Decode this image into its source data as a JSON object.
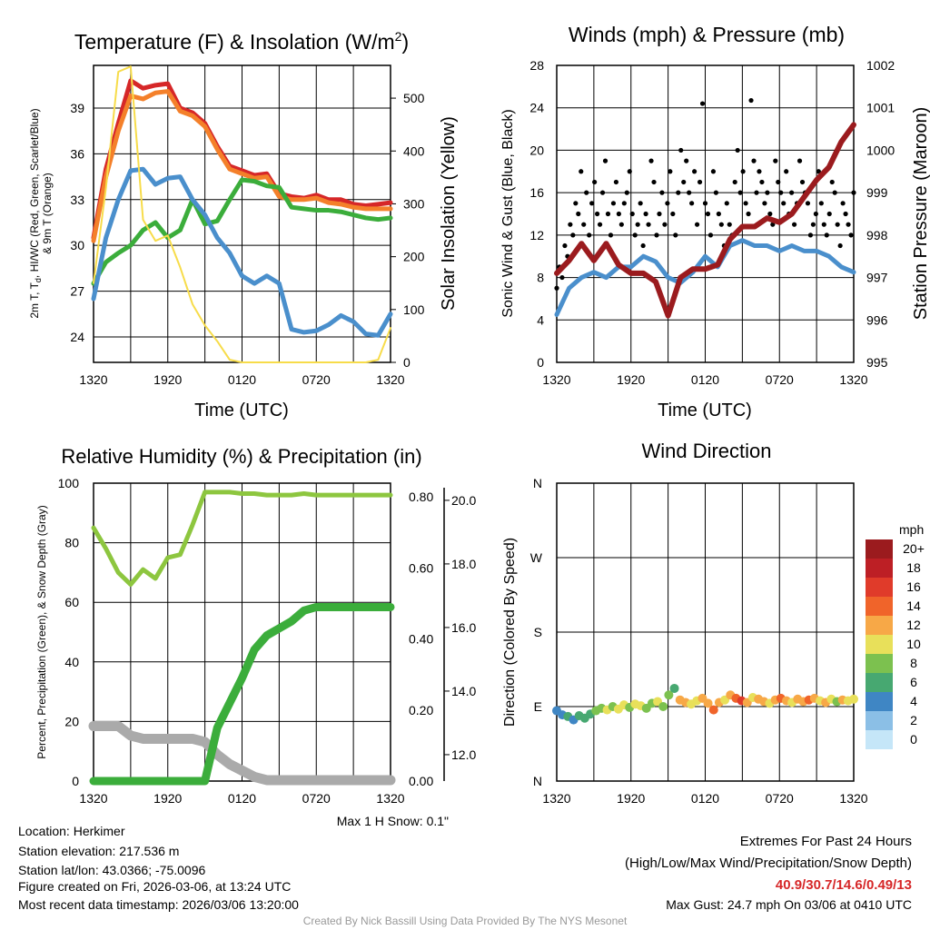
{
  "chart_data": [
    {
      "type": "line",
      "title": "Temperature (F) & Insolation (W/m",
      "title_sup": "2",
      "title_end": ")",
      "xlabel": "Time (UTC)",
      "ylabel_line1": "2m T, T",
      "ylabel_sub": "d",
      "ylabel_line1_end": ", HI/WC (Red, Green, Scarlet/Blue)",
      "ylabel_line2": "& 9m T (Orange)",
      "y2label": "Solar Insolation (Yellow)",
      "xticks": [
        "1320",
        "1920",
        "0120",
        "0720",
        "1320"
      ],
      "yticks": [
        "24",
        "27",
        "30",
        "33",
        "36",
        "39"
      ],
      "y2ticks": [
        "0",
        "100",
        "200",
        "300",
        "400",
        "500"
      ],
      "ylim": [
        22.33,
        41.8
      ],
      "y2lim": [
        0,
        562
      ],
      "hours": [
        0,
        1,
        2,
        3,
        4,
        5,
        6,
        7,
        8,
        9,
        10,
        11,
        12,
        13,
        14,
        15,
        16,
        17,
        18,
        19,
        20,
        21,
        22,
        23,
        24
      ],
      "series": [
        {
          "name": "2m T",
          "color": "#d62728",
          "axis": "left",
          "values": [
            30.5,
            35,
            38,
            40.8,
            40.3,
            40.5,
            40.6,
            39,
            38.7,
            38,
            36.5,
            35.2,
            34.9,
            34.6,
            34.7,
            33.4,
            33.2,
            33.1,
            33.3,
            33.0,
            33.0,
            32.7,
            32.6,
            32.7,
            32.8
          ]
        },
        {
          "name": "9m T",
          "color": "#f4802a",
          "axis": "left",
          "values": [
            30.3,
            34.5,
            37.5,
            39.8,
            39.6,
            40,
            40.1,
            38.8,
            38.5,
            37.8,
            36.3,
            35,
            34.7,
            34.4,
            34.5,
            33.2,
            33,
            33,
            33.1,
            32.8,
            32.7,
            32.5,
            32.4,
            32.4,
            32.4
          ]
        },
        {
          "name": "HI/WC",
          "color": "#3bad3b",
          "axis": "left",
          "values": [
            27.5,
            28.9,
            29.5,
            30,
            31,
            31.5,
            30.5,
            31,
            33,
            31.4,
            31.6,
            33,
            34.3,
            34.2,
            33.9,
            33.8,
            32.5,
            32.4,
            32.3,
            32.3,
            32.2,
            32.0,
            31.8,
            31.7,
            31.8
          ]
        },
        {
          "name": "Td",
          "color": "#4a8fcc",
          "axis": "left",
          "values": [
            26.5,
            30.5,
            33,
            34.9,
            35,
            34,
            34.4,
            34.5,
            33,
            32,
            30.5,
            29.5,
            28,
            27.5,
            28,
            27.5,
            24.5,
            24.3,
            24.4,
            24.8,
            25.4,
            25,
            24.2,
            24.1,
            25.5
          ]
        },
        {
          "name": "Solar Insolation",
          "color": "#f7dc4a",
          "axis": "right",
          "values": [
            150,
            330,
            550,
            560,
            270,
            230,
            240,
            180,
            110,
            70,
            40,
            5,
            0,
            0,
            0,
            0,
            0,
            0,
            0,
            0,
            0,
            0,
            0,
            5,
            65
          ]
        }
      ]
    },
    {
      "type": "line",
      "title": "Winds (mph) & Pressure (mb)",
      "xlabel": "Time (UTC)",
      "ylabel": "Sonic Wind & Gust (Blue, Black)",
      "y2label": "Station Pressure (Maroon)",
      "xticks": [
        "1320",
        "1920",
        "0120",
        "0720",
        "1320"
      ],
      "yticks": [
        "0",
        "4",
        "8",
        "12",
        "16",
        "20",
        "24",
        "28"
      ],
      "y2ticks": [
        "995",
        "996",
        "997",
        "998",
        "999",
        "1000",
        "1001",
        "1002"
      ],
      "ylim": [
        0,
        28
      ],
      "y2lim": [
        995,
        1002
      ],
      "series": [
        {
          "name": "Sonic Wind",
          "color": "#4a8fcc",
          "axis": "left",
          "values": [
            4.5,
            7,
            8,
            8.5,
            8,
            9,
            9,
            10,
            9.5,
            8,
            7.5,
            8.5,
            10,
            9,
            11,
            11.5,
            11,
            11,
            10.5,
            11,
            10.5,
            10.5,
            10,
            9,
            8.5
          ]
        },
        {
          "name": "Station Pressure",
          "color": "#9b1b1e",
          "axis": "right",
          "values": [
            997.1,
            997.4,
            997.8,
            997.4,
            997.8,
            997.3,
            997.1,
            997.1,
            996.9,
            996.1,
            997.0,
            997.2,
            997.2,
            997.3,
            997.9,
            998.2,
            998.2,
            998.4,
            998.3,
            998.5,
            998.9,
            999.3,
            999.6,
            1000.2,
            1000.6
          ]
        },
        {
          "name": "Gust",
          "color": "#000000",
          "axis": "left",
          "type": "scatter",
          "values": [
            7,
            9,
            8,
            11,
            10,
            13,
            12,
            15,
            14,
            18,
            13,
            16,
            12,
            15,
            17,
            14,
            13,
            16,
            19,
            14,
            12,
            15,
            17,
            14,
            13,
            15,
            16,
            18,
            14,
            12,
            13,
            15,
            11,
            14,
            13,
            19,
            17,
            12,
            14,
            16,
            13,
            15,
            18,
            14,
            12,
            16,
            20,
            17,
            19,
            16,
            15,
            18,
            13,
            17,
            24.4,
            15,
            14,
            12,
            18,
            16,
            14,
            13,
            11,
            15,
            13,
            12,
            17,
            20,
            16,
            18,
            15,
            14,
            24.7,
            19,
            16,
            18,
            17,
            15,
            16,
            14,
            13,
            19,
            17,
            16,
            15,
            18,
            14,
            16,
            13,
            15,
            19,
            17,
            16,
            15,
            12,
            13,
            14,
            18,
            15,
            13,
            12,
            14,
            17,
            16,
            13,
            11,
            15,
            14,
            13,
            12,
            16
          ]
        }
      ]
    },
    {
      "type": "line",
      "title": "Relative Humidity (%) & Precipitation (in)",
      "ylabel": "Percent, Precipitation (Green), & Snow Depth (Gray)",
      "footnote": "Max 1 H Snow: 0.1\"",
      "xticks": [
        "1320",
        "1920",
        "0120",
        "0720",
        "1320"
      ],
      "yticks": [
        "0",
        "20",
        "40",
        "60",
        "80",
        "100"
      ],
      "y2ticks": [
        "0.00",
        "0.20",
        "0.40",
        "0.60",
        "0.80"
      ],
      "y3ticks": [
        "12.0",
        "14.0",
        "16.0",
        "18.0",
        "20.0"
      ],
      "ylim": [
        0,
        100
      ],
      "y2lim": [
        0,
        0.839
      ],
      "y3lim": [
        11.17,
        20.54
      ],
      "series": [
        {
          "name": "Relative Humidity",
          "color": "#8dc63f",
          "axis": "left",
          "values": [
            85,
            78,
            70,
            66,
            71,
            68,
            75,
            76,
            86,
            97,
            97,
            97,
            96.5,
            96.5,
            96,
            96,
            96,
            96.5,
            96,
            96,
            96,
            96,
            96,
            96,
            96
          ]
        },
        {
          "name": "Precipitation",
          "color": "#3bad3b",
          "axis": "right",
          "values": [
            0,
            0,
            0,
            0,
            0,
            0,
            0,
            0,
            0,
            0,
            0.15,
            0.22,
            0.29,
            0.37,
            0.41,
            0.43,
            0.45,
            0.48,
            0.49,
            0.49,
            0.49,
            0.49,
            0.49,
            0.49,
            0.49
          ]
        },
        {
          "name": "Snow Depth",
          "color": "#aaaaaa",
          "axis": "snow",
          "values": [
            12.9,
            12.9,
            12.9,
            12.6,
            12.5,
            12.5,
            12.5,
            12.5,
            12.5,
            12.4,
            12.0,
            11.7,
            11.5,
            11.3,
            11.2,
            11.2,
            11.2,
            11.2,
            11.2,
            11.2,
            11.2,
            11.2,
            11.2,
            11.2,
            11.2
          ]
        }
      ]
    },
    {
      "type": "scatter",
      "title": "Wind Direction",
      "ylabel": "Direction (Colored By Speed)",
      "xticks": [
        "1320",
        "1920",
        "0120",
        "0720",
        "1320"
      ],
      "yticks": [
        "N",
        "E",
        "S",
        "W",
        "N"
      ],
      "ylim": [
        0,
        360
      ],
      "colorbar": {
        "title": "mph",
        "labels": [
          "20+",
          "18",
          "16",
          "14",
          "12",
          "10",
          "8",
          "6",
          "4",
          "2",
          "0"
        ],
        "colors": [
          "#9b1b1e",
          "#bd1f25",
          "#e03b2a",
          "#f0642a",
          "#f7a847",
          "#e8e05a",
          "#7cc14f",
          "#47a871",
          "#3f86c4",
          "#8bbfe6",
          "#c5e6f8"
        ]
      },
      "points": {
        "direction": [
          85,
          80,
          78,
          74,
          79,
          76,
          81,
          85,
          88,
          86,
          90,
          87,
          92,
          89,
          93,
          91,
          88,
          94,
          96,
          90,
          104,
          112,
          98,
          95,
          93,
          97,
          100,
          94,
          86,
          95,
          98,
          104,
          100,
          97,
          95,
          101,
          99,
          96,
          94,
          98,
          100,
          97,
          95,
          99,
          96,
          98,
          100,
          97,
          95,
          99,
          96,
          98,
          97,
          99
        ],
        "speed": [
          4,
          5,
          6,
          5,
          6,
          6,
          7,
          8,
          9,
          10,
          9,
          11,
          10,
          8,
          11,
          10,
          9,
          8,
          10,
          9,
          8,
          7,
          12,
          13,
          11,
          10,
          12,
          13,
          15,
          12,
          11,
          12,
          14,
          16,
          12,
          11,
          13,
          12,
          10,
          12,
          14,
          13,
          11,
          12,
          13,
          14,
          12,
          11,
          12,
          10,
          9,
          12,
          11,
          10
        ]
      }
    }
  ],
  "footer": {
    "location": "Location: Herkimer",
    "elevation": "Station elevation: 217.536 m",
    "latlon": "Station lat/lon: 43.0366; -75.0096",
    "created": "Figure created on Fri, 2026-03-06, at 13:24 UTC",
    "recent": "Most recent data timestamp: 2026/03/06 13:20:00",
    "extremes_title": "Extremes For Past 24 Hours",
    "extremes_sub": "(High/Low/Max Wind/Precipitation/Snow Depth)",
    "extremes_values": "40.9/30.7/14.6/0.49/13",
    "max_gust": "Max Gust: 24.7 mph On 03/06 at 0410 UTC",
    "credit": "Created By Nick Bassill Using Data Provided By The NYS Mesonet"
  }
}
